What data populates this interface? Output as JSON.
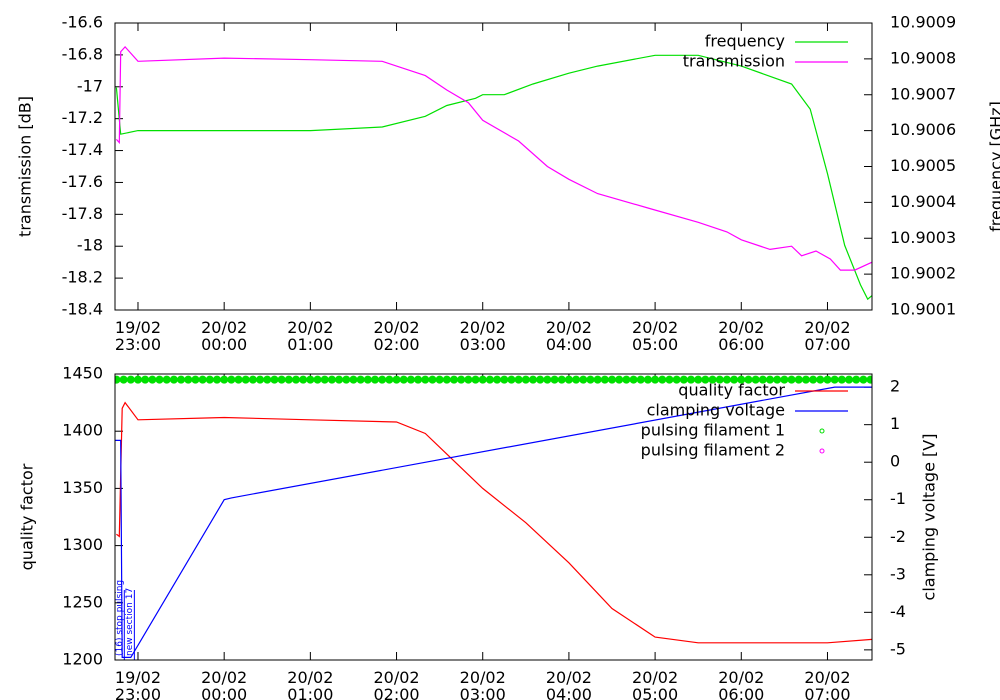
{
  "chart_data": [
    {
      "type": "line",
      "ylabel": "transmission [dB]",
      "y2label": "frequency [GHz]",
      "xlim": [
        "19/02 22:44",
        "20/02 07:31"
      ],
      "xticks": [
        "19/02 23:00",
        "20/02 00:00",
        "20/02 01:00",
        "20/02 02:00",
        "20/02 03:00",
        "20/02 04:00",
        "20/02 05:00",
        "20/02 06:00",
        "20/02 07:00"
      ],
      "ylim": [
        -18.4,
        -16.6
      ],
      "yticks": [
        -16.6,
        -16.8,
        -17,
        -17.2,
        -17.4,
        -17.6,
        -17.8,
        -18,
        -18.2,
        -18.4
      ],
      "y2lim": [
        10.9001,
        10.9009
      ],
      "y2ticks": [
        10.9009,
        10.9008,
        10.9007,
        10.9006,
        10.9005,
        10.9004,
        10.9003,
        10.9002,
        10.9001
      ],
      "legend": "upper right",
      "series": [
        {
          "name": "frequency",
          "color": "#00e000",
          "axis": "y2",
          "style": "lines",
          "x": [
            "19/02 22:45",
            "19/02 22:48",
            "19/02 23:00",
            "20/02 00:00",
            "20/02 01:00",
            "20/02 01:50",
            "20/02 02:20",
            "20/02 02:35",
            "20/02 02:55",
            "20/02 03:00",
            "20/02 03:15",
            "20/02 03:35",
            "20/02 04:00",
            "20/02 04:20",
            "20/02 05:00",
            "20/02 05:30",
            "20/02 06:00",
            "20/02 06:35",
            "20/02 06:48",
            "20/02 07:00",
            "20/02 07:12",
            "20/02 07:23",
            "20/02 07:28",
            "20/02 07:31"
          ],
          "values": [
            10.90072,
            10.90059,
            10.9006,
            10.9006,
            10.9006,
            10.90061,
            10.90064,
            10.90067,
            10.90069,
            10.9007,
            10.9007,
            10.90073,
            10.90076,
            10.90078,
            10.90081,
            10.90081,
            10.90078,
            10.90073,
            10.90066,
            10.90048,
            10.90028,
            10.90017,
            10.90013,
            10.90014
          ]
        },
        {
          "name": "transmission",
          "color": "#ff00ff",
          "axis": "y",
          "style": "lines",
          "x": [
            "19/02 22:45",
            "19/02 22:47",
            "19/02 22:48",
            "19/02 22:51",
            "19/02 23:00",
            "20/02 00:00",
            "20/02 01:00",
            "20/02 01:50",
            "20/02 02:20",
            "20/02 02:35",
            "20/02 02:50",
            "20/02 03:00",
            "20/02 03:25",
            "20/02 03:45",
            "20/02 04:00",
            "20/02 04:20",
            "20/02 04:55",
            "20/02 05:30",
            "20/02 05:50",
            "20/02 06:00",
            "20/02 06:20",
            "20/02 06:35",
            "20/02 06:42",
            "20/02 06:52",
            "20/02 07:02",
            "20/02 07:09",
            "20/02 07:19",
            "20/02 07:31"
          ],
          "values": [
            -17.33,
            -17.35,
            -16.78,
            -16.75,
            -16.84,
            -16.82,
            -16.83,
            -16.84,
            -16.93,
            -17.02,
            -17.1,
            -17.21,
            -17.34,
            -17.5,
            -17.58,
            -17.67,
            -17.76,
            -17.85,
            -17.91,
            -17.96,
            -18.02,
            -18,
            -18.06,
            -18.03,
            -18.08,
            -18.15,
            -18.15,
            -18.1
          ]
        }
      ]
    },
    {
      "type": "line",
      "ylabel": "quality factor",
      "y2label": "clamping voltage [V]",
      "xlim": [
        "19/02 22:44",
        "20/02 07:31"
      ],
      "xticks": [
        "19/02 23:00",
        "20/02 00:00",
        "20/02 01:00",
        "20/02 02:00",
        "20/02 03:00",
        "20/02 04:00",
        "20/02 05:00",
        "20/02 06:00",
        "20/02 07:00"
      ],
      "ylim": [
        1200,
        1450
      ],
      "yticks": [
        1450,
        1400,
        1350,
        1300,
        1250,
        1200
      ],
      "y2lim": [
        -5.27,
        2.35
      ],
      "y2ticks": [
        2,
        1,
        0,
        -1,
        -2,
        -3,
        -4,
        -5
      ],
      "legend": "upper right",
      "annotations": [
        {
          "x": "19/02 22:47",
          "text": "(16) stop pulsing"
        },
        {
          "x": "19/02 22:54",
          "text": "new section 17"
        }
      ],
      "series": [
        {
          "name": "quality factor",
          "color": "#ff0000",
          "axis": "y",
          "style": "lines",
          "x": [
            "19/02 22:45",
            "19/02 22:47",
            "19/02 22:49",
            "19/02 22:51",
            "19/02 23:00",
            "20/02 00:00",
            "20/02 01:00",
            "20/02 02:00",
            "20/02 02:20",
            "20/02 02:35",
            "20/02 03:00",
            "20/02 03:30",
            "20/02 04:00",
            "20/02 04:30",
            "20/02 05:00",
            "20/02 05:30",
            "20/02 06:00",
            "20/02 07:00",
            "20/02 07:31"
          ],
          "values": [
            1310,
            1308,
            1420,
            1425,
            1410,
            1412,
            1410,
            1408,
            1398,
            1380,
            1350,
            1320,
            1285,
            1245,
            1220,
            1215,
            1215,
            1215,
            1218
          ]
        },
        {
          "name": "clamping voltage",
          "color": "#0000ff",
          "axis": "y2",
          "style": "lines",
          "x": [
            "19/02 22:44",
            "19/02 22:48",
            "19/02 22:49",
            "19/02 22:55",
            "20/02 00:00",
            "20/02 00:05",
            "20/02 07:05",
            "20/02 07:31"
          ],
          "values": [
            0.58,
            0.58,
            -5.2,
            -5.2,
            -1,
            -0.95,
            2,
            2
          ]
        },
        {
          "name": "pulsing filament 1",
          "color": "#00e000",
          "axis": "y2",
          "style": "points",
          "x": [
            "19/02 22:45",
            "19/02 22:50",
            "19/02 22:55",
            "19/02 23:00",
            "19/02 23:05",
            "19/02 23:10",
            "19/02 23:15",
            "19/02 23:20",
            "19/02 23:25",
            "19/02 23:30",
            "19/02 23:35",
            "19/02 23:40",
            "19/02 23:45",
            "19/02 23:50",
            "19/02 23:55",
            "20/02 00:00",
            "20/02 00:05",
            "20/02 00:10",
            "20/02 00:15",
            "20/02 00:20",
            "20/02 00:25",
            "20/02 00:30",
            "20/02 00:35",
            "20/02 00:40",
            "20/02 00:45",
            "20/02 00:50",
            "20/02 00:55",
            "20/02 01:00",
            "20/02 01:05",
            "20/02 01:10",
            "20/02 01:15",
            "20/02 01:20",
            "20/02 01:25",
            "20/02 01:30",
            "20/02 01:35",
            "20/02 01:40",
            "20/02 01:45",
            "20/02 01:50",
            "20/02 01:55",
            "20/02 02:00",
            "20/02 02:05",
            "20/02 02:10",
            "20/02 02:15",
            "20/02 02:20",
            "20/02 02:25",
            "20/02 02:30",
            "20/02 02:35",
            "20/02 02:40",
            "20/02 02:45",
            "20/02 02:50",
            "20/02 02:55",
            "20/02 03:00",
            "20/02 03:05",
            "20/02 03:10",
            "20/02 03:15",
            "20/02 03:20",
            "20/02 03:25",
            "20/02 03:30",
            "20/02 03:35",
            "20/02 03:40",
            "20/02 03:45",
            "20/02 03:50",
            "20/02 03:55",
            "20/02 04:00",
            "20/02 04:05",
            "20/02 04:10",
            "20/02 04:15",
            "20/02 04:20",
            "20/02 04:25",
            "20/02 04:30",
            "20/02 04:35",
            "20/02 04:40",
            "20/02 04:45",
            "20/02 04:50",
            "20/02 04:55",
            "20/02 05:00",
            "20/02 05:05",
            "20/02 05:10",
            "20/02 05:15",
            "20/02 05:20",
            "20/02 05:25",
            "20/02 05:30",
            "20/02 05:35",
            "20/02 05:40",
            "20/02 05:45",
            "20/02 05:50",
            "20/02 05:55",
            "20/02 06:00",
            "20/02 06:05",
            "20/02 06:10",
            "20/02 06:15",
            "20/02 06:20",
            "20/02 06:25",
            "20/02 06:30",
            "20/02 06:35",
            "20/02 06:40",
            "20/02 06:45",
            "20/02 06:50",
            "20/02 06:55",
            "20/02 07:00",
            "20/02 07:05",
            "20/02 07:10",
            "20/02 07:15",
            "20/02 07:20",
            "20/02 07:25",
            "20/02 07:30"
          ],
          "values": [
            2.2,
            2.2,
            2.2,
            2.2,
            2.2,
            2.2,
            2.2,
            2.2,
            2.2,
            2.2,
            2.2,
            2.2,
            2.2,
            2.2,
            2.2,
            2.2,
            2.2,
            2.2,
            2.2,
            2.2,
            2.2,
            2.2,
            2.2,
            2.2,
            2.2,
            2.2,
            2.2,
            2.2,
            2.2,
            2.2,
            2.2,
            2.2,
            2.2,
            2.2,
            2.2,
            2.2,
            2.2,
            2.2,
            2.2,
            2.2,
            2.2,
            2.2,
            2.2,
            2.2,
            2.2,
            2.2,
            2.2,
            2.2,
            2.2,
            2.2,
            2.2,
            2.2,
            2.2,
            2.2,
            2.2,
            2.2,
            2.2,
            2.2,
            2.2,
            2.2,
            2.2,
            2.2,
            2.2,
            2.2,
            2.2,
            2.2,
            2.2,
            2.2,
            2.2,
            2.2,
            2.2,
            2.2,
            2.2,
            2.2,
            2.2,
            2.2,
            2.2,
            2.2,
            2.2,
            2.2,
            2.2,
            2.2,
            2.2,
            2.2,
            2.2,
            2.2,
            2.2,
            2.2,
            2.2,
            2.2,
            2.2,
            2.2,
            2.2,
            2.2,
            2.2,
            2.2,
            2.2,
            2.2,
            2.2,
            2.2,
            2.2,
            2.2,
            2.2,
            2.2,
            2.2,
            2.2
          ]
        },
        {
          "name": "pulsing filament 2",
          "color": "#ff00ff",
          "axis": "y2",
          "style": "points",
          "x": [],
          "values": []
        }
      ]
    }
  ]
}
